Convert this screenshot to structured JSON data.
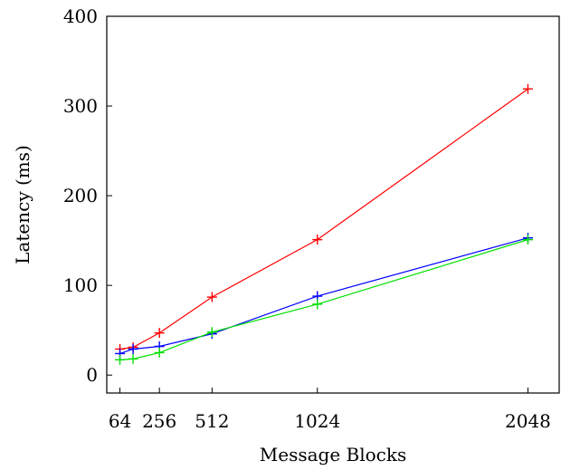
{
  "chart_data": {
    "type": "line",
    "xlabel": "Message Blocks",
    "ylabel": "Latency (ms)",
    "xlim": [
      0,
      2200
    ],
    "ylim": [
      -20,
      400
    ],
    "xticks": [
      64,
      256,
      512,
      1024,
      2048
    ],
    "yticks": [
      0,
      100,
      200,
      300,
      400
    ],
    "grid": false,
    "marker": "plus",
    "series": [
      {
        "color": "#ff0000",
        "x": [
          64,
          128,
          256,
          512,
          1024,
          2048
        ],
        "values": [
          29,
          31,
          47,
          87,
          151,
          319
        ]
      },
      {
        "color": "#0000ff",
        "x": [
          64,
          128,
          256,
          512,
          1024,
          2048
        ],
        "values": [
          24,
          29,
          32,
          46,
          88,
          153
        ]
      },
      {
        "color": "#00e000",
        "x": [
          64,
          128,
          256,
          512,
          1024,
          2048
        ],
        "values": [
          17,
          18,
          25,
          48,
          79,
          151
        ]
      }
    ]
  }
}
